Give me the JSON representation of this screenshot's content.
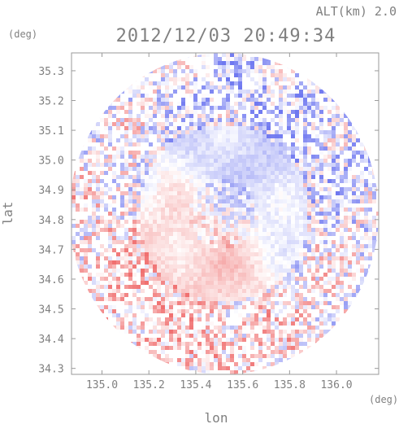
{
  "chart_data": {
    "type": "heatmap",
    "subtype": "radar-ppi-doppler-velocity",
    "title": "2012/12/03 20:49:34",
    "altitude_label": "ALT(km) 2.0",
    "xlabel": "lon",
    "ylabel": "lat",
    "x_unit": "(deg)",
    "y_unit": "(deg)",
    "xlim": [
      134.87,
      136.18
    ],
    "ylim": [
      34.28,
      35.36
    ],
    "xticks": [
      135.0,
      135.2,
      135.4,
      135.6,
      135.8,
      136.0
    ],
    "xtick_labels": [
      "135.0",
      "135.2",
      "135.4",
      "135.6",
      "135.8",
      "136.0"
    ],
    "yticks": [
      34.3,
      34.4,
      34.5,
      34.6,
      34.7,
      34.8,
      34.9,
      35.0,
      35.1,
      35.2,
      35.3
    ],
    "ytick_labels": [
      "34.3",
      "34.4",
      "34.5",
      "34.6",
      "34.7",
      "34.8",
      "34.9",
      "35.0",
      "35.1",
      "35.2",
      "35.3"
    ],
    "radar_center": {
      "lon": 135.52,
      "lat": 34.82
    },
    "radar_range_deg": {
      "lon": 0.66,
      "lat": 0.54
    },
    "colormap": {
      "negative": "#6f78f0",
      "neutral": "#ffffff",
      "positive": "#f07070"
    },
    "grid": false
  }
}
